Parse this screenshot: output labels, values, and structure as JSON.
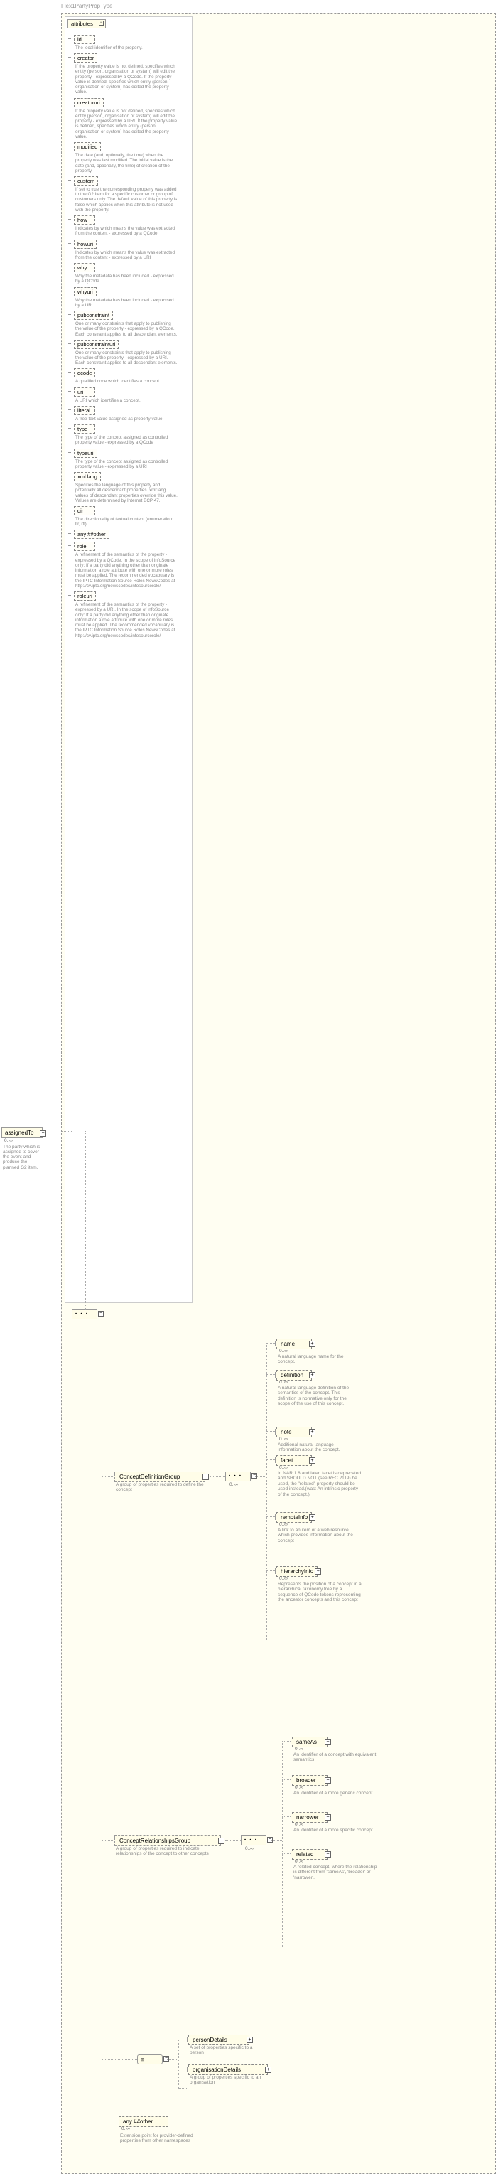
{
  "breadcrumb": "Flex1PartyPropType",
  "root": {
    "name": "assignedTo",
    "cardinality": "0..∞",
    "desc": "The party which is assigned to cover the event and produce the planned G2 item."
  },
  "attributes": {
    "header": "attributes",
    "items": [
      {
        "name": "id",
        "desc": "The local identifier of the property."
      },
      {
        "name": "creator",
        "desc": "If the property value is not defined, specifies which entity (person, organisation or system) will edit the property - expressed by a QCode. If the property value is defined, specifies which entity (person, organisation or system) has edited the property value."
      },
      {
        "name": "creatoruri",
        "desc": "If the property value is not defined, specifies which entity (person, organisation or system) will edit the property - expressed by a URI. If the property value is defined, specifies which entity (person, organisation or system) has edited the property value."
      },
      {
        "name": "modified",
        "desc": "The date (and, optionally, the time) when the property was last modified. The initial value is the date (and, optionally, the time) of creation of the property."
      },
      {
        "name": "custom",
        "desc": "If set to true the corresponding property was added to the G2 Item for a specific customer or group of customers only. The default value of this property is false which applies when this attribute is not used with the property."
      },
      {
        "name": "how",
        "desc": "Indicates by which means the value was extracted from the content - expressed by a QCode"
      },
      {
        "name": "howuri",
        "desc": "Indicates by which means the value was extracted from the content - expressed by a URI"
      },
      {
        "name": "why",
        "desc": "Why the metadata has been included - expressed by a QCode"
      },
      {
        "name": "whyuri",
        "desc": "Why the metadata has been included - expressed by a URI"
      },
      {
        "name": "pubconstraint",
        "desc": "One or many constraints that apply to publishing the value of the property - expressed by a QCode. Each constraint applies to all descendant elements."
      },
      {
        "name": "pubconstrainturi",
        "desc": "One or many constraints that apply to publishing the value of the property - expressed by a URI. Each constraint applies to all descendant elements."
      },
      {
        "name": "qcode",
        "desc": "A qualified code which identifies a concept."
      },
      {
        "name": "uri",
        "desc": "A URI which identifies a concept."
      },
      {
        "name": "literal",
        "desc": "A free-text value assigned as property value."
      },
      {
        "name": "type",
        "desc": "The type of the concept assigned as controlled property value - expressed by a QCode"
      },
      {
        "name": "typeuri",
        "desc": "The type of the concept assigned as controlled property value - expressed by a URI"
      },
      {
        "name": "xml:lang",
        "desc": "Specifies the language of this property and potentially all descendant properties. xml:lang values of descendant properties override this value. Values are determined by Internet BCP 47."
      },
      {
        "name": "dir",
        "desc": "The directionality of textual content (enumeration: ltr, rtl)"
      },
      {
        "name": "any ##other",
        "desc": ""
      },
      {
        "name": "role",
        "desc": "A refinement of the semantics of the property - expressed by a QCode. In the scope of infoSource only: If a party did anything other than originate information a role attribute with one or more roles must be applied. The recommended vocabulary is the IPTC Information Source Roles NewsCodes at http://cv.iptc.org/newscodes/infosourcerole/"
      },
      {
        "name": "roleuri",
        "desc": "A refinement of the semantics of the property - expressed by a URI. In the scope of infoSource only: If a party did anything other than originate information a role attribute with one or more roles must be applied. The recommended vocabulary is the IPTC Information Source Roles NewsCodes at http://cv.iptc.org/newscodes/infosourcerole/"
      }
    ]
  },
  "groups": {
    "definition": {
      "name": "ConceptDefinitionGroup",
      "desc": "A group of properties required to define the concept"
    },
    "relationships": {
      "name": "ConceptRelationshipsGroup",
      "desc": "A group of properties required to indicate relationships of the concept to other concepts"
    }
  },
  "defChildren": [
    {
      "name": "name",
      "card": "0..∞",
      "desc": "A natural language name for the concept."
    },
    {
      "name": "definition",
      "card": "0..∞",
      "desc": "A natural language definition of the semantics of the concept. This definition is normative only for the scope of the use of this concept."
    },
    {
      "name": "note",
      "card": "0..∞",
      "desc": "Additional natural language information about the concept."
    },
    {
      "name": "facet",
      "card": "0..∞",
      "desc": "In NAR 1.8 and later, facet is deprecated and SHOULD NOT (see RFC 2119) be used, the \"related\" property should be used instead.(was: An intrinsic property of the concept.)"
    },
    {
      "name": "remoteInfo",
      "card": "0..∞",
      "desc": "A link to an item or a web resource which provides information about the concept"
    },
    {
      "name": "hierarchyInfo",
      "card": "0..∞",
      "desc": "Represents the position of a concept in a hierarchical taxonomy tree by a sequence of QCode tokens representing the ancestor concepts and this concept"
    }
  ],
  "relChildren": [
    {
      "name": "sameAs",
      "card": "0..∞",
      "desc": "An identifier of a concept with equivalent semantics"
    },
    {
      "name": "broader",
      "card": "0..∞",
      "desc": "An identifier of a more generic concept."
    },
    {
      "name": "narrower",
      "card": "0..∞",
      "desc": "An identifier of a more specific concept."
    },
    {
      "name": "related",
      "card": "0..∞",
      "desc": "A related concept, where the relationship is different from 'sameAs', 'broader' or 'narrower'."
    }
  ],
  "bottomElements": [
    {
      "name": "personDetails",
      "desc": "A set of properties specific to a person"
    },
    {
      "name": "organisationDetails",
      "desc": "A group of properties specific to an organisation"
    }
  ],
  "anyOther": {
    "name": "any ##other",
    "card": "0..∞",
    "desc": "Extension point for provider-defined properties from other namespaces"
  },
  "colors": {
    "bg": "#fffef2",
    "box": "#fffde8",
    "border": "#999",
    "text_muted": "#888"
  }
}
